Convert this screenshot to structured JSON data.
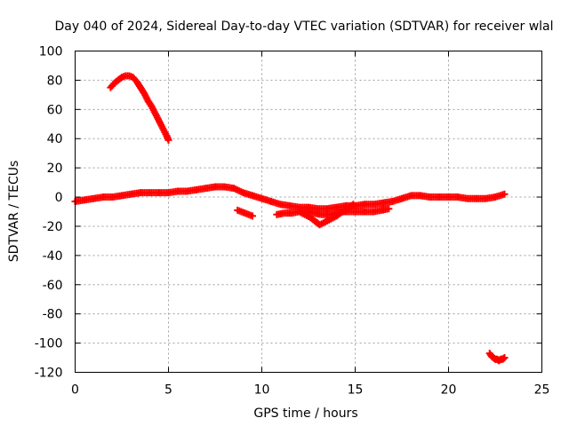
{
  "chart_data": {
    "type": "scatter",
    "title": "Day 040 of 2024, Sidereal Day-to-day VTEC variation (SDTVAR) for receiver wlal",
    "xlabel": "GPS time / hours",
    "ylabel": "SDTVAR / TECUs",
    "xlim": [
      0,
      25
    ],
    "ylim": [
      -120,
      100
    ],
    "xticks": [
      0,
      5,
      10,
      15,
      20,
      25
    ],
    "yticks": [
      100,
      80,
      60,
      40,
      20,
      0,
      -20,
      -40,
      -60,
      -80,
      -100,
      -120
    ],
    "grid": true,
    "marker": "+",
    "color": "#ff0000",
    "series": [
      {
        "name": "arc-high",
        "x": [
          1.9,
          2.1,
          2.3,
          2.5,
          2.7,
          2.9,
          3.1,
          3.3,
          3.5,
          3.7,
          3.9,
          4.1,
          4.3,
          4.5,
          4.7,
          4.9,
          5.0
        ],
        "y": [
          75,
          78,
          80,
          82,
          83,
          83,
          82,
          79,
          75,
          71,
          66,
          62,
          57,
          52,
          47,
          42,
          39
        ]
      },
      {
        "name": "main-band",
        "x": [
          0.0,
          0.5,
          1.0,
          1.5,
          2.0,
          2.5,
          3.0,
          3.5,
          4.0,
          4.5,
          5.0,
          5.5,
          6.0,
          6.5,
          7.0,
          7.5,
          8.0,
          8.5,
          9.0,
          9.5,
          10.0,
          10.5,
          11.0,
          11.5,
          12.0,
          12.5,
          13.0,
          13.5,
          14.0,
          14.5,
          15.0,
          15.5,
          16.0,
          16.5,
          17.0,
          17.5,
          18.0,
          18.5,
          19.0,
          19.5,
          20.0,
          20.5,
          21.0,
          21.5,
          22.0,
          22.5,
          23.0
        ],
        "y": [
          -3,
          -2,
          -1,
          0,
          0,
          1,
          2,
          3,
          3,
          3,
          3,
          4,
          4,
          5,
          6,
          7,
          7,
          6,
          3,
          1,
          -1,
          -3,
          -5,
          -6,
          -7,
          -7,
          -8,
          -8,
          -7,
          -6,
          -6,
          -5,
          -5,
          -4,
          -3,
          -1,
          1,
          1,
          0,
          0,
          0,
          0,
          -1,
          -1,
          -1,
          0,
          2
        ]
      },
      {
        "name": "lower-band",
        "x": [
          10.8,
          11.2,
          11.6,
          12.0,
          12.4,
          12.8,
          13.2,
          13.6,
          14.0,
          14.4,
          14.8,
          15.2,
          15.6,
          16.0,
          16.4,
          16.8
        ],
        "y": [
          -12,
          -11,
          -11,
          -10,
          -10,
          -11,
          -12,
          -12,
          -11,
          -10,
          -10,
          -10,
          -10,
          -10,
          -9,
          -8
        ]
      },
      {
        "name": "dip",
        "x": [
          12.0,
          12.3,
          12.6,
          12.9,
          13.1,
          13.4,
          13.7,
          14.0,
          14.3,
          14.6,
          14.9
        ],
        "y": [
          -10,
          -12,
          -14,
          -17,
          -19,
          -17,
          -15,
          -13,
          -10,
          -8,
          -5
        ]
      },
      {
        "name": "short-segment",
        "x": [
          8.7,
          8.9,
          9.1,
          9.3,
          9.5
        ],
        "y": [
          -9,
          -10,
          -11,
          -12,
          -13
        ]
      },
      {
        "name": "arc-low",
        "x": [
          22.2,
          22.3,
          22.4,
          22.5,
          22.6,
          22.7,
          22.8,
          22.9,
          23.0
        ],
        "y": [
          -107,
          -109,
          -110,
          -111,
          -111,
          -112,
          -111,
          -111,
          -110
        ]
      }
    ]
  }
}
